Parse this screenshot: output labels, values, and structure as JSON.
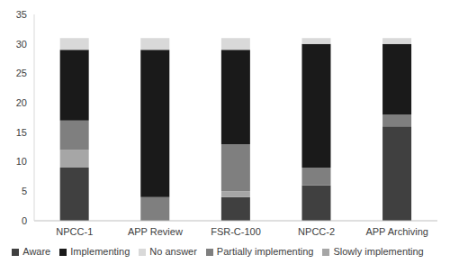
{
  "chart_data": {
    "type": "bar",
    "categories": [
      "NPCC-1",
      "APP Review",
      "FSR-C-100",
      "NPCC-2",
      "APP Archiving"
    ],
    "series": [
      {
        "name": "Aware",
        "color": "#404040",
        "values": [
          9,
          0,
          4,
          6,
          16
        ]
      },
      {
        "name": "Slowly implementing",
        "color": "#a6a6a6",
        "values": [
          3,
          0,
          1,
          0,
          0
        ]
      },
      {
        "name": "Partially implementing",
        "color": "#7f7f7f",
        "values": [
          5,
          4,
          8,
          3,
          2
        ]
      },
      {
        "name": "Implementing",
        "color": "#1a1a1a",
        "values": [
          12,
          25,
          16,
          21,
          12
        ]
      },
      {
        "name": "No answer",
        "color": "#d9d9d9",
        "values": [
          2,
          2,
          2,
          1,
          1
        ]
      }
    ],
    "ylim": [
      0,
      35
    ],
    "yticks": [
      0,
      5,
      10,
      15,
      20,
      25,
      30,
      35
    ],
    "grid": false,
    "legend": "bottom",
    "stacked": true
  }
}
